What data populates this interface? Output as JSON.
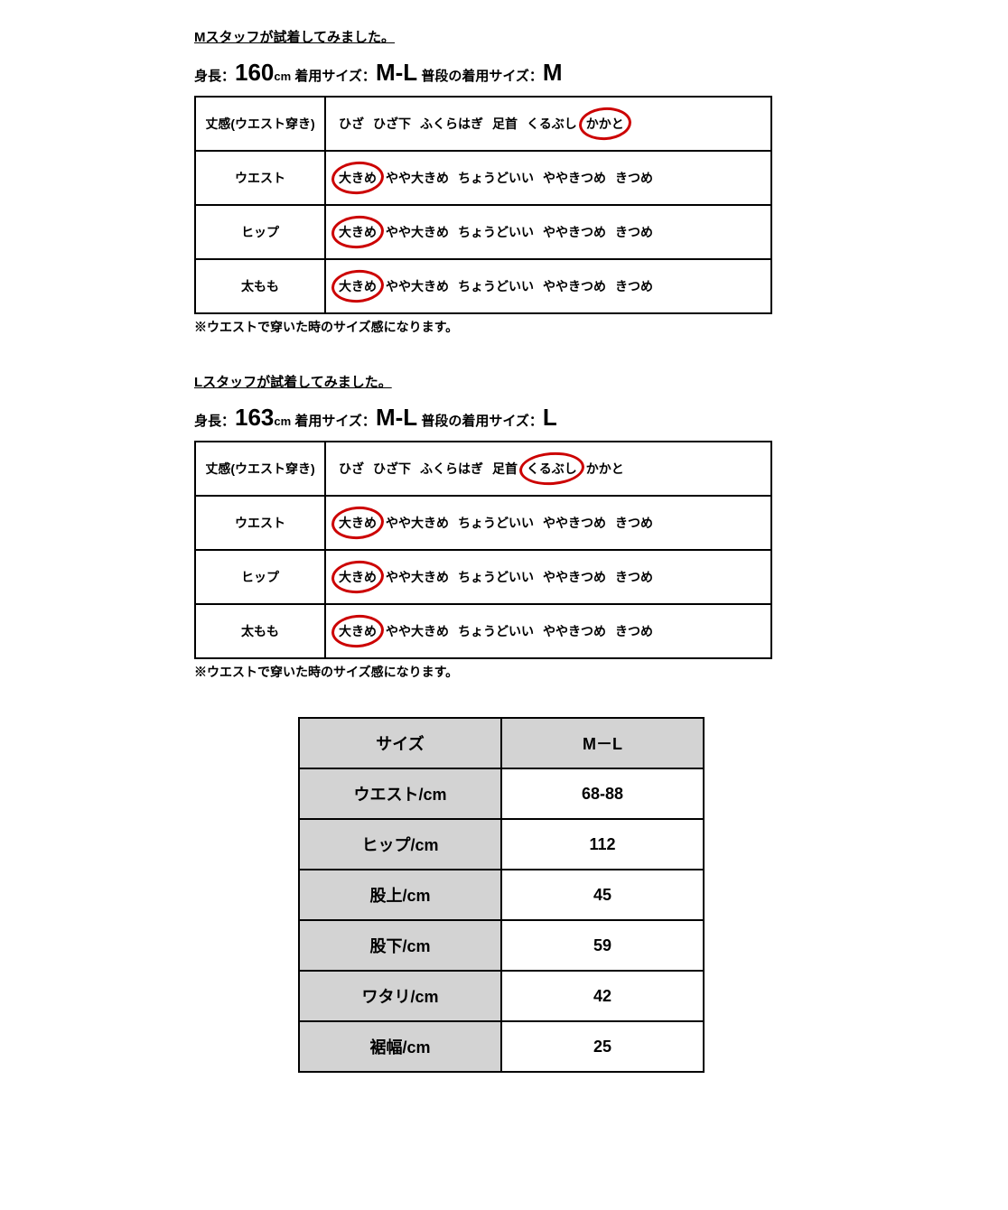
{
  "colors": {
    "circle": "#cc0000",
    "shaded": "#d3d3d3",
    "border": "#000000",
    "background": "#ffffff"
  },
  "staff": [
    {
      "heading": "Mスタッフが試着してみました。",
      "height_label": "身長：",
      "height_value": "160",
      "height_unit": "cm",
      "worn_label": "着用サイズ：",
      "worn_value": "M-L",
      "usual_label": "普段の着用サイズ：",
      "usual_value": "M",
      "rows": [
        {
          "label": "丈感(ウエスト穿き)",
          "options": [
            "ひざ",
            "ひざ下",
            "ふくらはぎ",
            "足首",
            "くるぶし",
            "かかと"
          ],
          "circled_index": 5
        },
        {
          "label": "ウエスト",
          "options": [
            "大きめ",
            "やや大きめ",
            "ちょうどいい",
            "ややきつめ",
            "きつめ"
          ],
          "circled_index": 0
        },
        {
          "label": "ヒップ",
          "options": [
            "大きめ",
            "やや大きめ",
            "ちょうどいい",
            "ややきつめ",
            "きつめ"
          ],
          "circled_index": 0
        },
        {
          "label": "太もも",
          "options": [
            "大きめ",
            "やや大きめ",
            "ちょうどいい",
            "ややきつめ",
            "きつめ"
          ],
          "circled_index": 0
        }
      ],
      "note": "※ウエストで穿いた時のサイズ感になります。"
    },
    {
      "heading": "Lスタッフが試着してみました。",
      "height_label": "身長：",
      "height_value": "163",
      "height_unit": "cm",
      "worn_label": "着用サイズ：",
      "worn_value": "M-L",
      "usual_label": "普段の着用サイズ：",
      "usual_value": "L",
      "rows": [
        {
          "label": "丈感(ウエスト穿き)",
          "options": [
            "ひざ",
            "ひざ下",
            "ふくらはぎ",
            "足首",
            "くるぶし",
            "かかと"
          ],
          "circled_index": 4
        },
        {
          "label": "ウエスト",
          "options": [
            "大きめ",
            "やや大きめ",
            "ちょうどいい",
            "ややきつめ",
            "きつめ"
          ],
          "circled_index": 0
        },
        {
          "label": "ヒップ",
          "options": [
            "大きめ",
            "やや大きめ",
            "ちょうどいい",
            "ややきつめ",
            "きつめ"
          ],
          "circled_index": 0
        },
        {
          "label": "太もも",
          "options": [
            "大きめ",
            "やや大きめ",
            "ちょうどいい",
            "ややきつめ",
            "きつめ"
          ],
          "circled_index": 0
        }
      ],
      "note": "※ウエストで穿いた時のサイズ感になります。"
    }
  ],
  "size_table": {
    "header": [
      "サイズ",
      "M－L"
    ],
    "rows": [
      [
        "ウエスト/cm",
        "68-88"
      ],
      [
        "ヒップ/cm",
        "112"
      ],
      [
        "股上/cm",
        "45"
      ],
      [
        "股下/cm",
        "59"
      ],
      [
        "ワタリ/cm",
        "42"
      ],
      [
        "裾幅/cm",
        "25"
      ]
    ]
  }
}
